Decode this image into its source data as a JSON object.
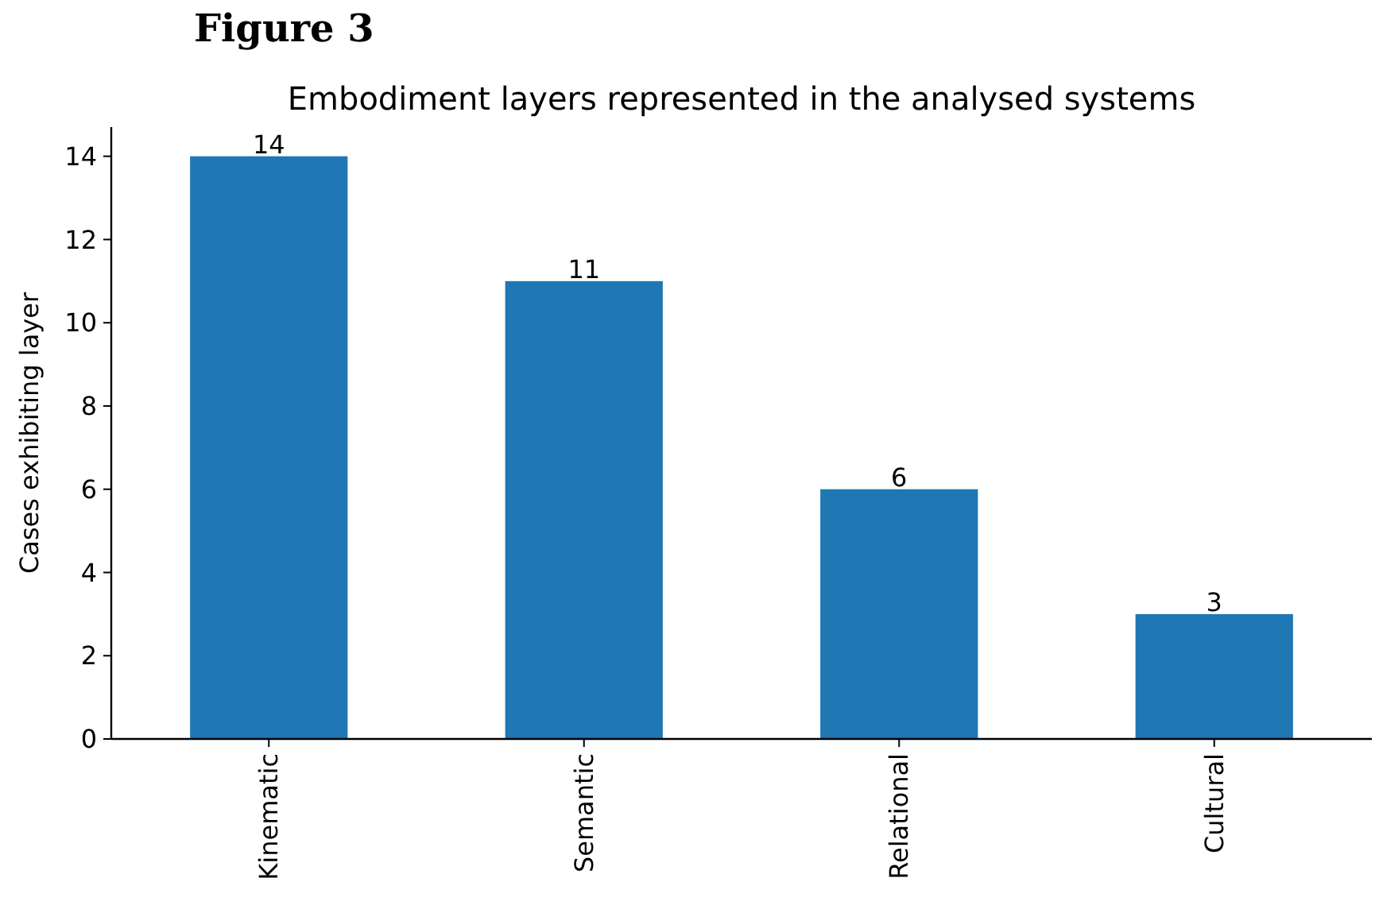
{
  "chart_data": {
    "type": "bar",
    "title": "Embodiment layers represented in the analysed systems",
    "ylabel": "Cases exhibiting layer",
    "annotations": [
      "Figure 3"
    ],
    "categories": [
      "Kinematic",
      "Semantic",
      "Relational",
      "Cultural"
    ],
    "values": [
      14,
      11,
      6,
      3
    ],
    "color": "#1f77b4",
    "ylim": [
      0,
      14.7
    ],
    "yticks": [
      0,
      2,
      4,
      6,
      8,
      10,
      12,
      14
    ],
    "grid": false,
    "data_labels": true
  }
}
